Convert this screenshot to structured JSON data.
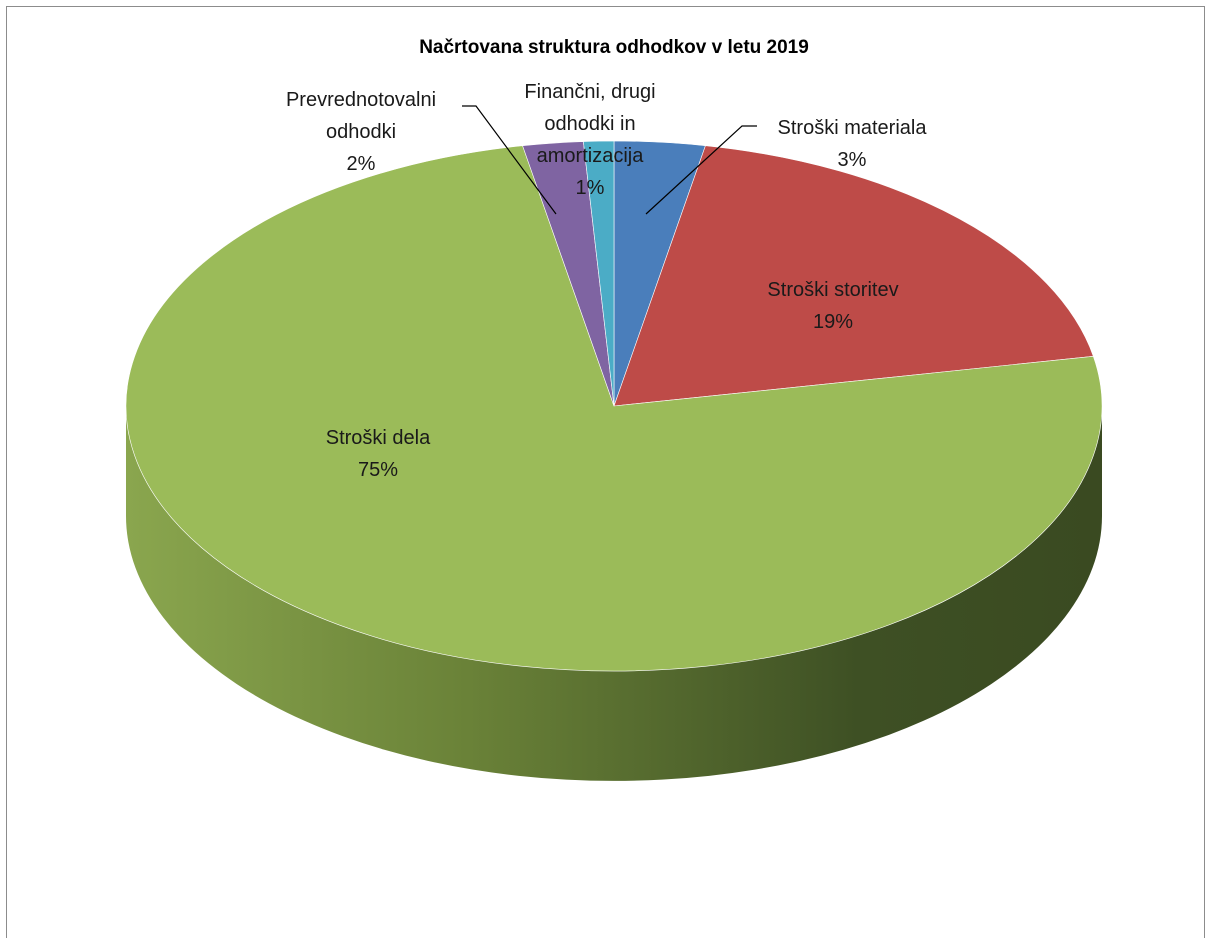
{
  "chart_data": {
    "type": "pie",
    "style": "3d",
    "title": "Načrtovana struktura odhodkov v letu 2019",
    "slices": [
      {
        "label": "Stroški materiala",
        "percent": 3,
        "value_label": "3%",
        "color": "#4a7ebb"
      },
      {
        "label": "Stroški storitev",
        "percent": 19,
        "value_label": "19%",
        "color": "#be4b48"
      },
      {
        "label": "Stroški dela",
        "percent": 75,
        "value_label": "75%",
        "color": "#9bbb59"
      },
      {
        "label": "Prevrednotovalni odhodki",
        "percent": 2,
        "value_label": "2%",
        "color": "#7f64a2"
      },
      {
        "label": "Finančni, drugi odhodki in amortizacija",
        "percent": 1,
        "value_label": "1%",
        "color": "#4bacc6"
      }
    ]
  }
}
